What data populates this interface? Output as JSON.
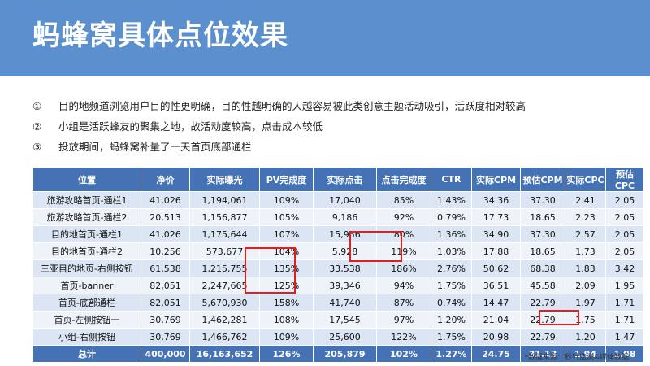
{
  "title": "蚂蜂窝具体点位效果",
  "points": [
    {
      "num": "①",
      "text": "目的地频道浏览用户目的性更明确，目的性越明确的人越容易被此类创意主题活动吸引，活跃度相对较高"
    },
    {
      "num": "②",
      "text": "小组是活跃蜂友的聚集之地，故活动度较高，点击成本较低"
    },
    {
      "num": "③",
      "text": "投放期间，蚂蜂窝补量了一天首页底部通栏"
    }
  ],
  "table": {
    "headers": [
      "位置",
      "净价",
      "实际曝光",
      "PV完成度",
      "实际点击",
      "点击完成度",
      "CTR",
      "实际CPM",
      "预估CPM",
      "实际CPC",
      "预估CPC"
    ],
    "rows": [
      [
        "旅游攻略首页-通栏1",
        "41,026",
        "1,194,061",
        "109%",
        "17,040",
        "85%",
        "1.43%",
        "34.36",
        "37.30",
        "2.41",
        "2.05"
      ],
      [
        "旅游攻略首页-通栏2",
        "20,513",
        "1,156,877",
        "105%",
        "9,186",
        "92%",
        "0.79%",
        "17.73",
        "18.65",
        "2.23",
        "2.05"
      ],
      [
        "目的地首页-通栏1",
        "41,026",
        "1,175,644",
        "107%",
        "15,956",
        "80%",
        "1.36%",
        "34.90",
        "37.30",
        "2.57",
        "2.05"
      ],
      [
        "目的地首页-通栏2",
        "10,256",
        "573,677",
        "104%",
        "5,928",
        "119%",
        "1.03%",
        "17.88",
        "18.65",
        "1.73",
        "2.05"
      ],
      [
        "三亚目的地页-右侧按钮",
        "61,538",
        "1,215,755",
        "135%",
        "33,538",
        "186%",
        "2.76%",
        "50.62",
        "68.38",
        "1.83",
        "3.42"
      ],
      [
        "首页-banner",
        "82,051",
        "2,247,665",
        "125%",
        "39,346",
        "94%",
        "1.75%",
        "36.51",
        "45.58",
        "2.09",
        "1.95"
      ],
      [
        "首页-底部通栏",
        "82,051",
        "5,670,930",
        "158%",
        "41,740",
        "87%",
        "0.74%",
        "14.47",
        "22.79",
        "1.97",
        "1.71"
      ],
      [
        "首页-左侧按钮一",
        "30,769",
        "1,462,281",
        "108%",
        "17,545",
        "97%",
        "1.20%",
        "21.04",
        "22.79",
        "1.75",
        "1.71"
      ],
      [
        "小组-右侧按钮",
        "30,769",
        "1,466,762",
        "109%",
        "25,600",
        "122%",
        "1.75%",
        "20.98",
        "22.79",
        "1.20",
        "1.47"
      ]
    ],
    "total": [
      "总计",
      "400,000",
      "16,163,652",
      "126%",
      "205,879",
      "102%",
      "1.27%",
      "24.75",
      "31.13",
      "1.94",
      "1.98"
    ]
  },
  "source": "*数据来源：秒针监测&媒体数据",
  "colors": {
    "header_bg": "#5b8fcd",
    "table_header": "#4472b4",
    "row_odd": "#dbe5f3",
    "row_even": "#eef3fa",
    "highlight": "#e02020"
  }
}
